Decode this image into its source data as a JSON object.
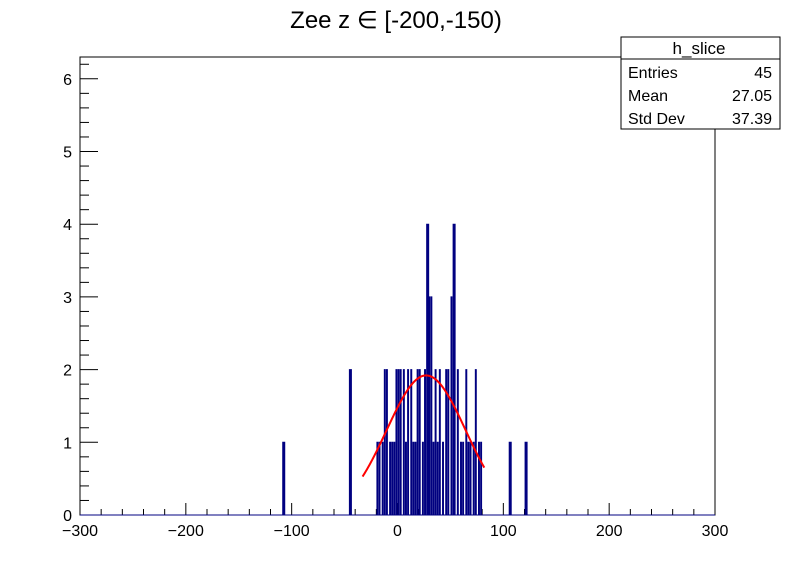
{
  "chart_data": {
    "type": "histogram",
    "title": "Zee z ∈ [-200,-150)",
    "xlabel": "",
    "ylabel": "",
    "xlim": [
      -300,
      300
    ],
    "ylim": [
      0,
      6.3
    ],
    "x_ticks": [
      -300,
      -200,
      -100,
      0,
      100,
      200,
      300
    ],
    "x_tick_labels": [
      "−300",
      "−200",
      "−100",
      "0",
      "100",
      "200",
      "300"
    ],
    "y_ticks": [
      0,
      1,
      2,
      3,
      4,
      5,
      6
    ],
    "y_tick_labels": [
      "0",
      "1",
      "2",
      "3",
      "4",
      "5",
      "6"
    ],
    "series": [
      {
        "name": "h_slice",
        "style": "step",
        "color": "#000080",
        "bins": [
          {
            "x": -108,
            "y": 1
          },
          {
            "x": -107,
            "y": 1
          },
          {
            "x": -45,
            "y": 2
          },
          {
            "x": -44,
            "y": 2
          },
          {
            "x": -19,
            "y": 1
          },
          {
            "x": -17,
            "y": 1
          },
          {
            "x": -14,
            "y": 1
          },
          {
            "x": -12,
            "y": 2
          },
          {
            "x": -10,
            "y": 2
          },
          {
            "x": -7,
            "y": 1
          },
          {
            "x": -5,
            "y": 1
          },
          {
            "x": -3,
            "y": 1
          },
          {
            "x": -1,
            "y": 2
          },
          {
            "x": 1,
            "y": 2
          },
          {
            "x": 3,
            "y": 2
          },
          {
            "x": 6,
            "y": 2
          },
          {
            "x": 8,
            "y": 1
          },
          {
            "x": 10,
            "y": 2
          },
          {
            "x": 13,
            "y": 2
          },
          {
            "x": 15,
            "y": 1
          },
          {
            "x": 17,
            "y": 1
          },
          {
            "x": 19,
            "y": 2
          },
          {
            "x": 21,
            "y": 2
          },
          {
            "x": 24,
            "y": 1
          },
          {
            "x": 26,
            "y": 2
          },
          {
            "x": 28,
            "y": 4
          },
          {
            "x": 29,
            "y": 4
          },
          {
            "x": 30,
            "y": 3
          },
          {
            "x": 32,
            "y": 3
          },
          {
            "x": 34,
            "y": 1
          },
          {
            "x": 36,
            "y": 2
          },
          {
            "x": 38,
            "y": 1
          },
          {
            "x": 40,
            "y": 2
          },
          {
            "x": 43,
            "y": 1
          },
          {
            "x": 46,
            "y": 2
          },
          {
            "x": 48,
            "y": 2
          },
          {
            "x": 51,
            "y": 3
          },
          {
            "x": 53,
            "y": 4
          },
          {
            "x": 54,
            "y": 4
          },
          {
            "x": 57,
            "y": 2
          },
          {
            "x": 60,
            "y": 1
          },
          {
            "x": 62,
            "y": 1
          },
          {
            "x": 65,
            "y": 2
          },
          {
            "x": 67,
            "y": 1
          },
          {
            "x": 69,
            "y": 1
          },
          {
            "x": 72,
            "y": 1
          },
          {
            "x": 74,
            "y": 2
          },
          {
            "x": 77,
            "y": 1
          },
          {
            "x": 79,
            "y": 1
          },
          {
            "x": 106,
            "y": 1
          },
          {
            "x": 107,
            "y": 1
          },
          {
            "x": 121,
            "y": 1
          },
          {
            "x": 122,
            "y": 1
          }
        ]
      },
      {
        "name": "gaussian-fit",
        "style": "line",
        "color": "#ff0000",
        "function": "gaussian",
        "amplitude": 1.92,
        "mean": 27.05,
        "sigma": 37.39,
        "x_range": [
          -33,
          82
        ]
      }
    ],
    "legend": {
      "placement": "top-right",
      "title": "h_slice",
      "rows": [
        {
          "label": "Entries",
          "value": "45"
        },
        {
          "label": "Mean",
          "value": "27.05"
        },
        {
          "label": "Std Dev",
          "value": "37.39"
        }
      ]
    },
    "grid": false
  },
  "colors": {
    "histogram": "#000080",
    "fit": "#ff0000",
    "axis": "#000000",
    "background": "#ffffff"
  }
}
